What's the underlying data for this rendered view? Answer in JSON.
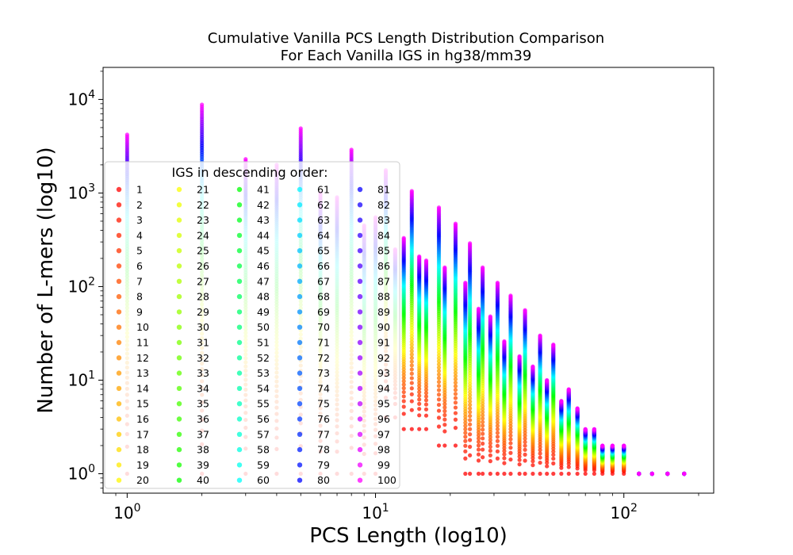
{
  "chart_data": {
    "type": "scatter",
    "title": [
      "Cumulative Vanilla PCS Length Distribution Comparison",
      "For Each Vanilla IGS in hg38/mm39"
    ],
    "xlabel": "PCS Length (log10)",
    "ylabel": "Number of L-mers (log10)",
    "xscale": "log",
    "yscale": "log",
    "xlim": [
      0.8,
      230
    ],
    "ylim": [
      0.62,
      22000
    ],
    "xticks": [
      1,
      10,
      100
    ],
    "yticks": [
      1,
      10,
      100,
      1000,
      10000
    ],
    "tick_base": "10",
    "tick_exponents": [
      "0",
      "1",
      "2",
      "3",
      "4"
    ],
    "grid": false,
    "legend": {
      "title": "IGS in descending order:",
      "placement": "left",
      "entries": [
        "1",
        "2",
        "3",
        "4",
        "5",
        "6",
        "7",
        "8",
        "9",
        "10",
        "11",
        "12",
        "13",
        "14",
        "15",
        "16",
        "17",
        "18",
        "19",
        "20",
        "21",
        "22",
        "23",
        "24",
        "25",
        "26",
        "27",
        "28",
        "29",
        "30",
        "31",
        "32",
        "33",
        "34",
        "35",
        "36",
        "37",
        "38",
        "39",
        "40",
        "41",
        "42",
        "43",
        "44",
        "45",
        "46",
        "47",
        "48",
        "49",
        "50",
        "51",
        "52",
        "53",
        "54",
        "55",
        "56",
        "57",
        "58",
        "59",
        "60",
        "61",
        "62",
        "63",
        "64",
        "65",
        "66",
        "67",
        "68",
        "69",
        "70",
        "71",
        "72",
        "73",
        "74",
        "75",
        "76",
        "77",
        "78",
        "79",
        "80",
        "81",
        "82",
        "83",
        "84",
        "85",
        "86",
        "87",
        "88",
        "89",
        "90",
        "91",
        "92",
        "93",
        "94",
        "95",
        "96",
        "97",
        "98",
        "99",
        "100"
      ]
    },
    "series_color_scheme": "hsv gradient: red (IGS 1) -> orange -> yellow -> green -> cyan -> blue -> magenta (IGS 100)",
    "columns": [
      {
        "x": 1,
        "ymin": 1,
        "ymax": 4200
      },
      {
        "x": 2,
        "ymin": 1,
        "ymax": 8800
      },
      {
        "x": 3,
        "ymin": 1,
        "ymax": 2300
      },
      {
        "x": 4,
        "ymin": 1,
        "ymax": 2000
      },
      {
        "x": 5,
        "ymin": 1,
        "ymax": 4900
      },
      {
        "x": 6,
        "ymin": 1,
        "ymax": 1000
      },
      {
        "x": 7,
        "ymin": 1,
        "ymax": 900
      },
      {
        "x": 8,
        "ymin": 1,
        "ymax": 2900
      },
      {
        "x": 9,
        "ymin": 1,
        "ymax": 450
      },
      {
        "x": 10,
        "ymin": 1,
        "ymax": 550
      },
      {
        "x": 11,
        "ymin": 4,
        "ymax": 1750
      },
      {
        "x": 12,
        "ymin": 4,
        "ymax": 250
      },
      {
        "x": 13,
        "ymin": 3,
        "ymax": 330
      },
      {
        "x": 14,
        "ymin": 3,
        "ymax": 1050
      },
      {
        "x": 15,
        "ymin": 3,
        "ymax": 210
      },
      {
        "x": 16,
        "ymin": 3,
        "ymax": 190
      },
      {
        "x": 18,
        "ymin": 2,
        "ymax": 700
      },
      {
        "x": 19,
        "ymin": 2,
        "ymax": 160
      },
      {
        "x": 21,
        "ymin": 2,
        "ymax": 470
      },
      {
        "x": 23,
        "ymin": 1,
        "ymax": 110
      },
      {
        "x": 24,
        "ymin": 1,
        "ymax": 290
      },
      {
        "x": 26,
        "ymin": 1,
        "ymax": 58
      },
      {
        "x": 27,
        "ymin": 1,
        "ymax": 160
      },
      {
        "x": 29,
        "ymin": 1,
        "ymax": 48
      },
      {
        "x": 31,
        "ymin": 1,
        "ymax": 110
      },
      {
        "x": 33,
        "ymin": 1,
        "ymax": 26
      },
      {
        "x": 35,
        "ymin": 1,
        "ymax": 80
      },
      {
        "x": 38,
        "ymin": 1,
        "ymax": 18
      },
      {
        "x": 40,
        "ymin": 1,
        "ymax": 56
      },
      {
        "x": 43,
        "ymin": 1,
        "ymax": 14
      },
      {
        "x": 46,
        "ymin": 1,
        "ymax": 30
      },
      {
        "x": 49,
        "ymin": 1,
        "ymax": 10
      },
      {
        "x": 52,
        "ymin": 1,
        "ymax": 24
      },
      {
        "x": 56,
        "ymin": 1,
        "ymax": 6
      },
      {
        "x": 60,
        "ymin": 1,
        "ymax": 8
      },
      {
        "x": 65,
        "ymin": 1,
        "ymax": 5
      },
      {
        "x": 70,
        "ymin": 1,
        "ymax": 3
      },
      {
        "x": 76,
        "ymin": 1,
        "ymax": 3
      },
      {
        "x": 82,
        "ymin": 1,
        "ymax": 2
      },
      {
        "x": 90,
        "ymin": 1,
        "ymax": 2
      },
      {
        "x": 100,
        "ymin": 1,
        "ymax": 2
      },
      {
        "x": 115,
        "ymin": 1,
        "ymax": 1
      },
      {
        "x": 130,
        "ymin": 1,
        "ymax": 1
      },
      {
        "x": 150,
        "ymin": 1,
        "ymax": 1
      },
      {
        "x": 175,
        "ymin": 1,
        "ymax": 1
      }
    ]
  }
}
